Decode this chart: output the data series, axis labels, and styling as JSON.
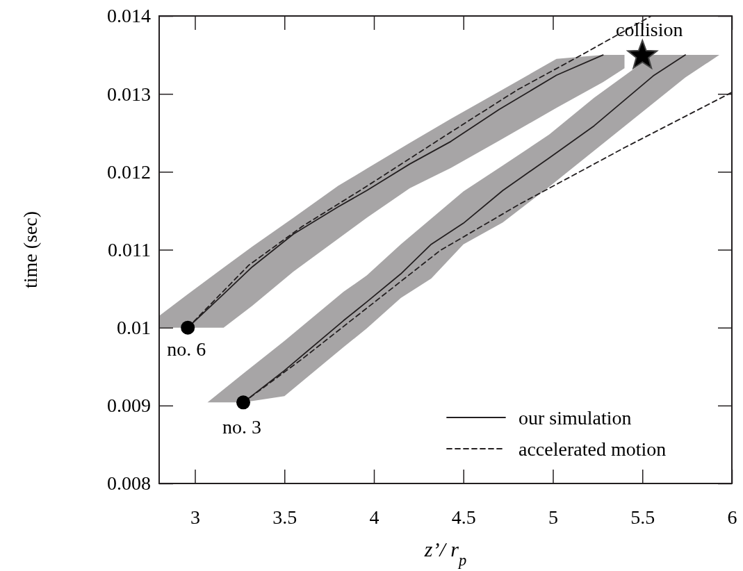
{
  "chart_data": {
    "type": "line",
    "xlabel": "z’/ r$_{p}$",
    "ylabel": "time (sec)",
    "xlim": [
      2.8,
      6
    ],
    "ylim": [
      0.008,
      0.014
    ],
    "xticks": [
      3,
      3.5,
      4,
      4.5,
      5,
      5.5,
      6
    ],
    "yticks": [
      0.008,
      0.009,
      0.01,
      0.011,
      0.012,
      0.013,
      0.014
    ],
    "grid": false,
    "legend": "bottom right",
    "series": [
      {
        "name": "our simulation",
        "line_style": "solid",
        "color": "#231f20",
        "x": [
          2.8,
          2.96,
          3.16,
          3.32,
          3.55,
          3.8,
          3.96,
          4.2,
          4.43,
          4.7,
          5.02,
          5.28,
          5.4
        ],
        "values": [
          null,
          0.01,
          0.01043,
          0.01078,
          0.0112,
          0.01155,
          0.01176,
          0.0121,
          0.01239,
          0.0128,
          0.01324,
          0.0135,
          null
        ],
        "lower": [
          0.01,
          0.01,
          0.01,
          0.01028,
          0.01072,
          0.01114,
          0.01141,
          0.01179,
          0.01205,
          0.0124,
          0.01282,
          0.01315,
          0.01333
        ],
        "upper": [
          0.01015,
          0.01043,
          0.01077,
          0.01104,
          0.01141,
          0.01182,
          0.01204,
          0.01237,
          0.01268,
          0.01303,
          0.01345,
          0.0135,
          0.0135
        ]
      },
      {
        "name": "accelerated motion",
        "line_style": "dashed",
        "color": "#231f20",
        "x": [
          2.96,
          3.3,
          3.6,
          3.95,
          4.43,
          4.8,
          5.16,
          5.55
        ],
        "values": [
          0.01,
          0.0108,
          0.0113,
          0.0118,
          0.01251,
          0.01305,
          0.0135,
          0.014
        ]
      },
      {
        "line_style": "solid",
        "color": "#231f20",
        "x": [
          3.07,
          3.27,
          3.5,
          3.83,
          3.96,
          4.15,
          4.32,
          4.5,
          4.72,
          4.98,
          5.23,
          5.56,
          5.74,
          5.93
        ],
        "values": [
          null,
          0.00904,
          0.00945,
          0.01009,
          0.01033,
          0.01069,
          0.01107,
          0.01134,
          0.01176,
          0.01218,
          0.01259,
          0.01323,
          0.0135,
          null
        ],
        "lower": [
          0.00904,
          0.00904,
          0.00912,
          0.00975,
          0.00999,
          0.01038,
          0.01063,
          0.01107,
          0.01135,
          0.01181,
          0.01227,
          0.01288,
          0.01321,
          0.0135
        ],
        "upper": [
          0.00904,
          0.00941,
          0.00983,
          0.01046,
          0.01067,
          0.01107,
          0.0114,
          0.01175,
          0.01208,
          0.01248,
          0.01295,
          0.0135,
          0.0135,
          0.0135
        ]
      },
      {
        "line_style": "dashed",
        "color": "#231f20",
        "x": [
          3.27,
          3.6,
          3.96,
          4.37,
          4.81,
          5.4,
          6.0
        ],
        "values": [
          0.00904,
          0.0096,
          0.01025,
          0.01099,
          0.01158,
          0.01231,
          0.01302
        ]
      },
      {
        "type": "scatter",
        "marker": "circle",
        "color": "#000000",
        "x": [
          2.96,
          3.27
        ],
        "values": [
          0.01,
          0.00904
        ]
      },
      {
        "type": "scatter",
        "marker": "star",
        "color": "#000000",
        "x": [
          5.5
        ],
        "values": [
          0.01349
        ]
      }
    ],
    "annotations": [
      {
        "text": "no. 6",
        "x": 2.96,
        "y": 0.01
      },
      {
        "text": "no. 3",
        "x": 3.27,
        "y": 0.00904
      },
      {
        "text": "collision",
        "x": 5.5,
        "y": 0.01349
      }
    ]
  }
}
